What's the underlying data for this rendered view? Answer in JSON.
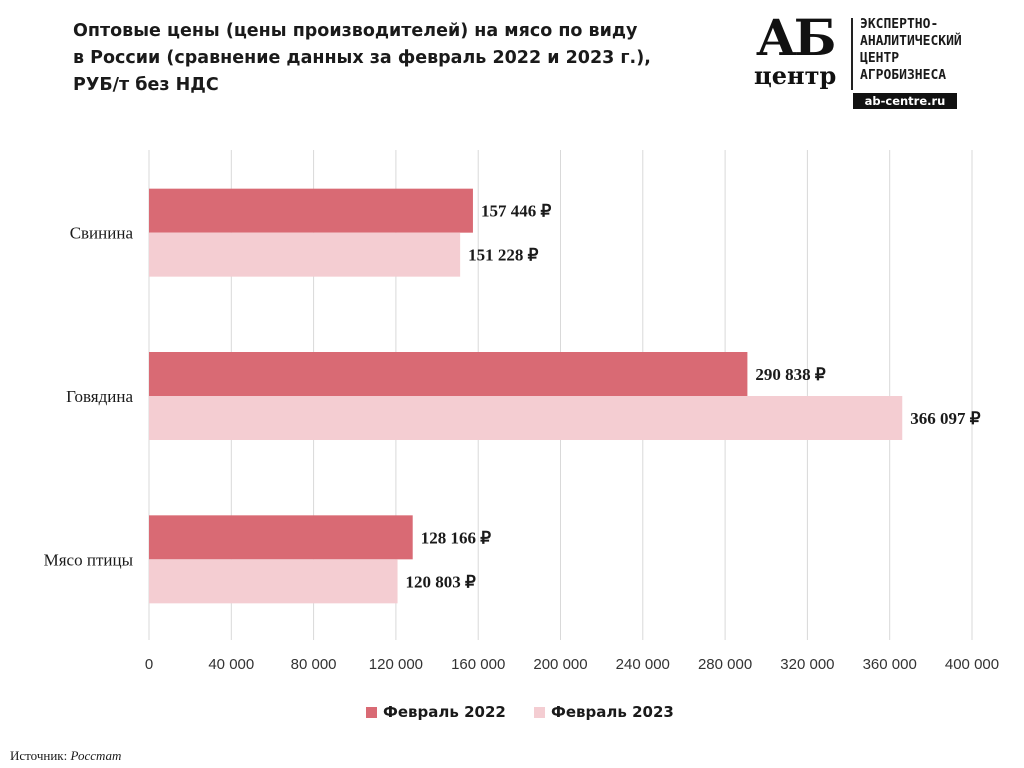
{
  "header": {
    "title_lines": [
      "Оптовые цены (цены производителей) на мясо по виду",
      "в России (сравнение данных за февраль 2022 и 2023 г.),",
      "РУБ/т без НДС"
    ]
  },
  "logo": {
    "mark_top": "АБ",
    "mark_bottom": "центр",
    "org_lines": [
      "ЭКСПЕРТНО-",
      "АНАЛИТИЧЕСКИЙ",
      "ЦЕНТР",
      "АГРОБИЗНЕСА"
    ],
    "site": "ab-centre.ru"
  },
  "source": {
    "label": "Источник:",
    "name": "Росстат"
  },
  "colors": {
    "feb_2022": "#d96a74",
    "feb_2023": "#f4cdd2",
    "grid": "#d9d9d9",
    "axis_text": "#333333"
  },
  "chart_data": {
    "type": "bar",
    "orientation": "horizontal",
    "title": "Оптовые цены (цены производителей) на мясо по виду в России (сравнение данных за февраль 2022 и 2023 г.), РУБ/т без НДС",
    "categories": [
      "Свинина",
      "Говядина",
      "Мясо птицы"
    ],
    "series": [
      {
        "name": "Февраль 2022",
        "values": [
          157446,
          290838,
          128166
        ],
        "labels": [
          "157 446 ₽",
          "290 838 ₽",
          "128 166 ₽"
        ]
      },
      {
        "name": "Февраль 2023",
        "values": [
          151228,
          366097,
          120803
        ],
        "labels": [
          "151 228 ₽",
          "366 097 ₽",
          "120 803 ₽"
        ]
      }
    ],
    "xlim": [
      0,
      400000
    ],
    "xticks": [
      0,
      40000,
      80000,
      120000,
      160000,
      200000,
      240000,
      280000,
      320000,
      360000,
      400000
    ],
    "xtick_labels": [
      "0",
      "40 000",
      "80 000",
      "120 000",
      "160 000",
      "200 000",
      "240 000",
      "280 000",
      "320 000",
      "360 000",
      "400 000"
    ],
    "grid": true,
    "legend_position": "bottom"
  }
}
